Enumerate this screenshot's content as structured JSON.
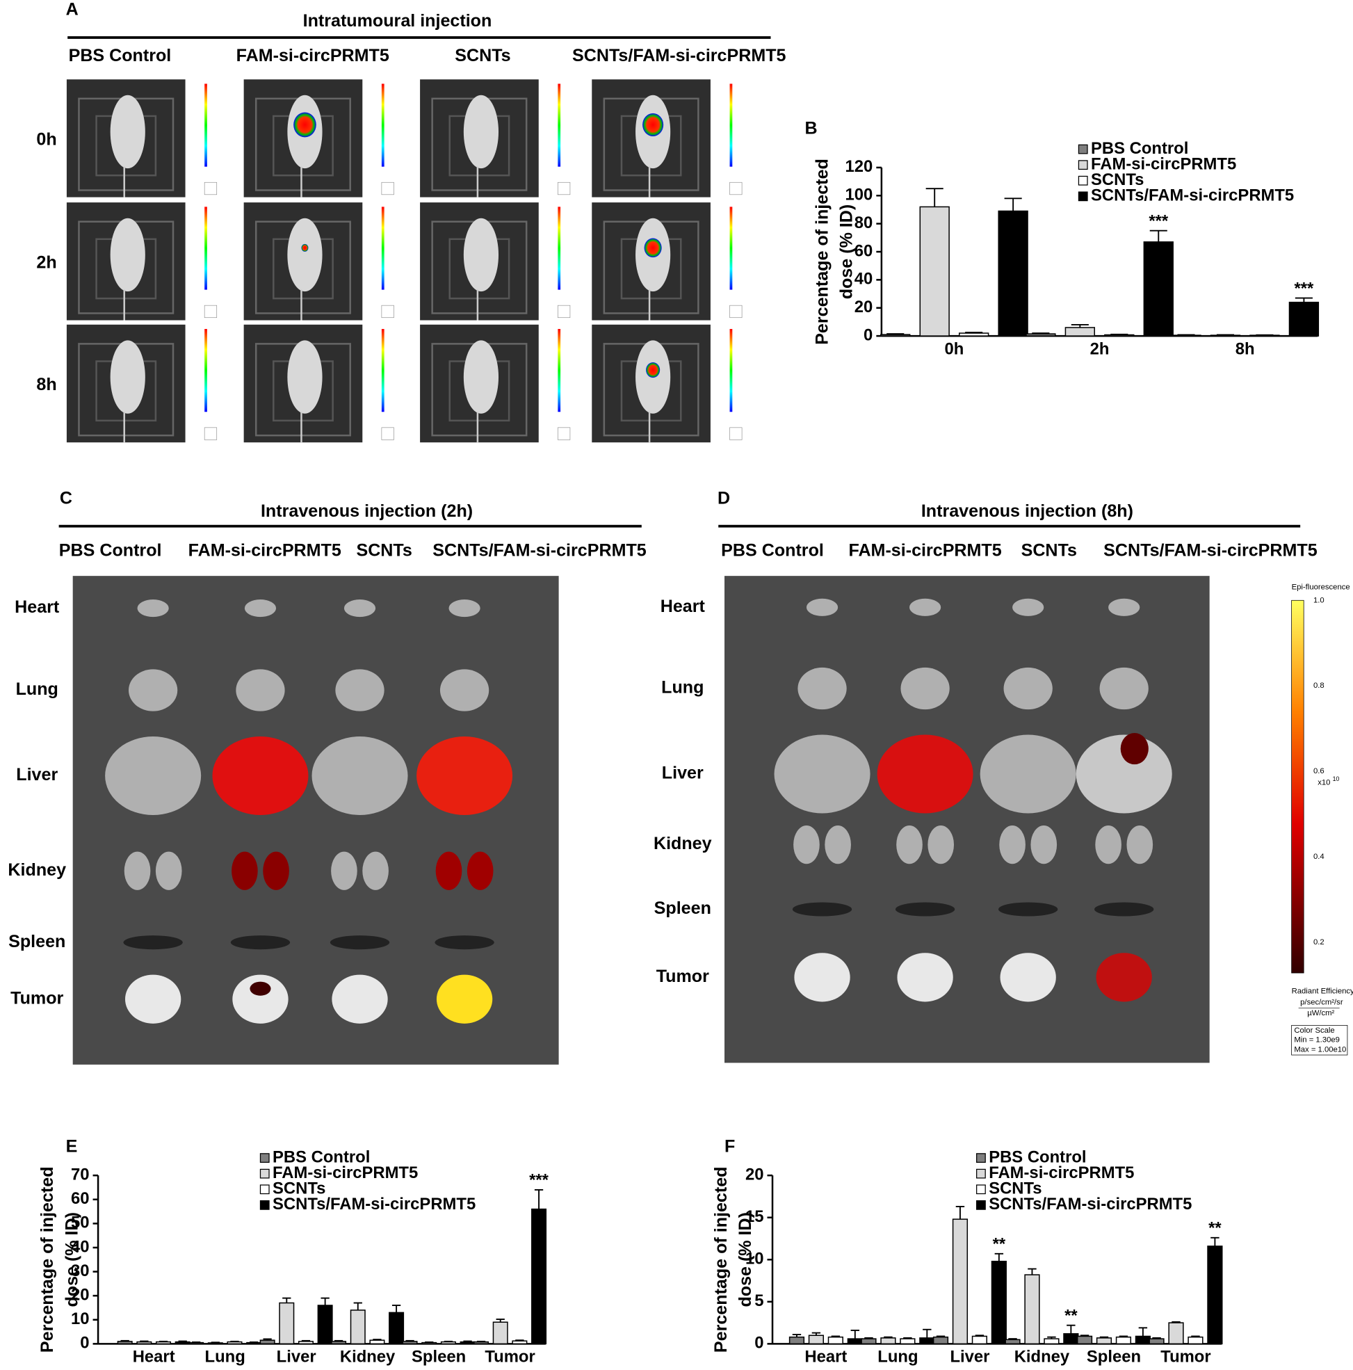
{
  "panel_a": {
    "label": "A",
    "title": "Intratumoural injection",
    "groups": [
      "PBS Control",
      "FAM-si-circPRMT5",
      "SCNTs",
      "SCNTs/FAM-si-circPRMT5"
    ],
    "times": [
      "0h",
      "2h",
      "8h"
    ]
  },
  "panel_c": {
    "label": "C",
    "title": "Intravenous injection (2h)",
    "groups": [
      "PBS Control",
      "FAM-si-circPRMT5",
      "SCNTs",
      "SCNTs/FAM-si-circPRMT5"
    ],
    "organs": [
      "Heart",
      "Lung",
      "Liver",
      "Kidney",
      "Spleen",
      "Tumor"
    ]
  },
  "panel_d": {
    "label": "D",
    "title": "Intravenous injection (8h)",
    "groups": [
      "PBS Control",
      "FAM-si-circPRMT5",
      "SCNTs",
      "SCNTs/FAM-si-circPRMT5"
    ],
    "organs": [
      "Heart",
      "Lung",
      "Liver",
      "Kidney",
      "Spleen",
      "Tumor"
    ],
    "color_scale": {
      "title": "Epi-fluorescence",
      "ticks": [
        "1.0",
        "0.8",
        "0.6",
        "0.4",
        "0.2"
      ],
      "exponent_base": "x10",
      "exponent_power": "10",
      "unit_title": "Radiant Efficiency",
      "unit_numerator": "p/sec/cm²/sr",
      "unit_denominator": "µW/cm²",
      "box_title": "Color Scale",
      "min": "Min = 1.30e9",
      "max": "Max = 1.00e10"
    }
  },
  "chart_data": [
    {
      "type": "bar",
      "label": "B",
      "ylabel": [
        "Percentage of injected",
        "dose (% ID)"
      ],
      "categories": [
        "0h",
        "2h",
        "8h"
      ],
      "ylim": [
        0,
        120
      ],
      "yticks": [
        0,
        20,
        40,
        60,
        80,
        100,
        120
      ],
      "legend": "top-right",
      "series": [
        {
          "name": "PBS Control",
          "color": "#7f7f7f",
          "values": [
            1,
            1.5,
            0.5
          ],
          "errors": [
            0.5,
            0.5,
            0.3
          ],
          "annotations": [
            null,
            null,
            null
          ]
        },
        {
          "name": "FAM-si-circPRMT5",
          "color": "#d9d9d9",
          "values": [
            92,
            6,
            0.5
          ],
          "errors": [
            13,
            2,
            0.3
          ],
          "annotations": [
            null,
            null,
            null
          ]
        },
        {
          "name": "SCNTs",
          "color": "#ffffff",
          "values": [
            2,
            0.8,
            0.5
          ],
          "errors": [
            0.5,
            0.3,
            0.2
          ],
          "annotations": [
            null,
            null,
            null
          ]
        },
        {
          "name": "SCNTs/FAM-si-circPRMT5",
          "color": "#000000",
          "values": [
            89,
            67,
            24
          ],
          "errors": [
            9,
            8,
            3
          ],
          "annotations": [
            null,
            "***",
            "***"
          ]
        }
      ]
    },
    {
      "type": "bar",
      "label": "E",
      "ylabel": [
        "Percentage of injected",
        "dose (% ID)"
      ],
      "categories": [
        "Heart",
        "Lung",
        "Liver",
        "Kidney",
        "Spleen",
        "Tumor"
      ],
      "ylim": [
        0,
        70
      ],
      "yticks": [
        0,
        10,
        20,
        30,
        40,
        50,
        60,
        70
      ],
      "legend": "top-right",
      "series": [
        {
          "name": "PBS Control",
          "color": "#7f7f7f",
          "values": [
            1,
            0.5,
            1.5,
            1,
            1,
            0.8
          ],
          "errors": [
            0.3,
            0.2,
            0.5,
            0.3,
            0.3,
            0.2
          ],
          "annotations": [
            null,
            null,
            null,
            null,
            null,
            null
          ]
        },
        {
          "name": "FAM-si-circPRMT5",
          "color": "#d9d9d9",
          "values": [
            0.8,
            0.4,
            17,
            14,
            0.5,
            9
          ],
          "errors": [
            0.3,
            0.2,
            2,
            3,
            0.2,
            1.2
          ],
          "annotations": [
            null,
            null,
            null,
            null,
            null,
            null
          ]
        },
        {
          "name": "SCNTs",
          "color": "#ffffff",
          "values": [
            0.8,
            0.8,
            1,
            1.5,
            0.8,
            1.2
          ],
          "errors": [
            0.2,
            0.2,
            0.3,
            0.3,
            0.2,
            0.3
          ],
          "annotations": [
            null,
            null,
            null,
            null,
            null,
            null
          ]
        },
        {
          "name": "SCNTs/FAM-si-circPRMT5",
          "color": "#000000",
          "values": [
            0.8,
            0.5,
            16,
            13,
            0.8,
            56
          ],
          "errors": [
            0.3,
            0.2,
            3,
            3,
            0.3,
            8
          ],
          "annotations": [
            null,
            null,
            null,
            null,
            null,
            "***"
          ]
        }
      ]
    },
    {
      "type": "bar",
      "label": "F",
      "ylabel": [
        "Percentage of injected",
        "dose (% ID)"
      ],
      "categories": [
        "Heart",
        "Lung",
        "Liver",
        "Kidney",
        "Spleen",
        "Tumor"
      ],
      "ylim": [
        0,
        20
      ],
      "yticks": [
        0,
        5,
        10,
        15,
        20
      ],
      "legend": "top-right",
      "series": [
        {
          "name": "PBS Control",
          "color": "#7f7f7f",
          "values": [
            0.8,
            0.6,
            0.8,
            0.5,
            0.9,
            0.6
          ],
          "errors": [
            0.3,
            0.1,
            0.1,
            0.1,
            0.1,
            0.1
          ],
          "annotations": [
            null,
            null,
            null,
            null,
            null,
            null
          ]
        },
        {
          "name": "FAM-si-circPRMT5",
          "color": "#d9d9d9",
          "values": [
            1,
            0.7,
            14.8,
            8.2,
            0.7,
            2.5
          ],
          "errors": [
            0.3,
            0.1,
            1.5,
            0.7,
            0.1,
            0.1
          ],
          "annotations": [
            null,
            null,
            null,
            null,
            null,
            null
          ]
        },
        {
          "name": "SCNTs",
          "color": "#ffffff",
          "values": [
            0.8,
            0.6,
            0.9,
            0.6,
            0.8,
            0.8
          ],
          "errors": [
            0.1,
            0.1,
            0.1,
            0.2,
            0.1,
            0.1
          ],
          "annotations": [
            null,
            null,
            null,
            null,
            null,
            null
          ]
        },
        {
          "name": "SCNTs/FAM-si-circPRMT5",
          "color": "#000000",
          "values": [
            0.6,
            0.7,
            9.8,
            1.2,
            0.9,
            11.6
          ],
          "errors": [
            1,
            1,
            0.9,
            1,
            1,
            1
          ],
          "annotations": [
            null,
            null,
            "**",
            "**",
            null,
            "**"
          ]
        }
      ]
    }
  ]
}
